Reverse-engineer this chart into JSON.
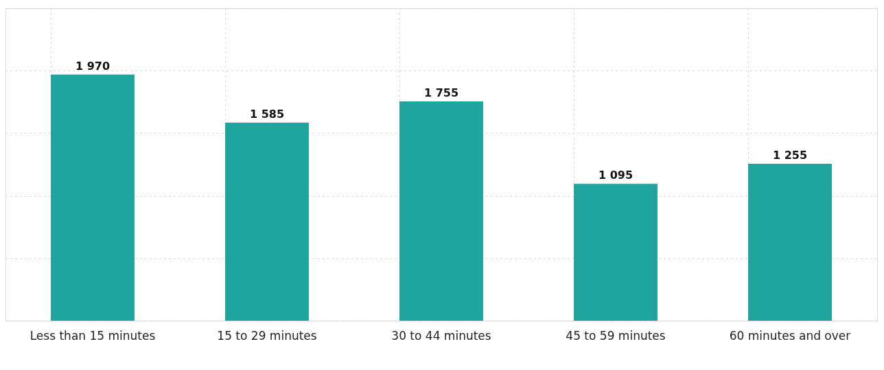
{
  "chart_data": {
    "type": "bar",
    "categories": [
      "Less than 15 minutes",
      "15 to 29 minutes",
      "30 to 44 minutes",
      "45 to 59 minutes",
      "60 minutes and over"
    ],
    "values": [
      1970,
      1585,
      1755,
      1095,
      1255
    ],
    "value_labels": [
      "1 970",
      "1 585",
      "1 755",
      "1 095",
      "1 255"
    ],
    "color": "#1fa59d",
    "ylim": [
      0,
      2500
    ],
    "yticks": [
      {
        "value": 0,
        "label": null
      },
      {
        "value": 500,
        "label": null
      },
      {
        "value": 1000,
        "label": null
      },
      {
        "value": 1500,
        "label": null
      },
      {
        "value": 2000,
        "label": null
      },
      {
        "value": 2500,
        "label": null
      }
    ],
    "tick_labels": "x",
    "grid": true
  }
}
